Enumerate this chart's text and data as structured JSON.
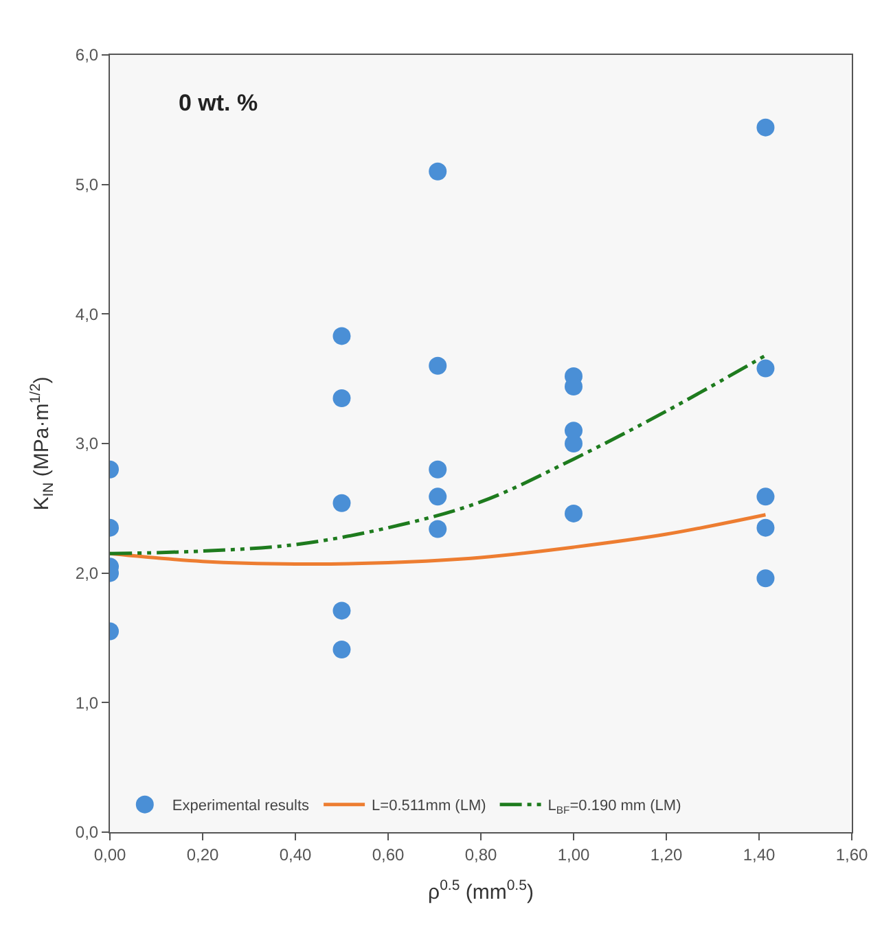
{
  "chart_data": {
    "type": "scatter",
    "title": "0 wt. %",
    "xlabel": "ρ$^{0.5}$ (mm$^{0.5}$)",
    "ylabel": "K$_{IN}$ (MPa·m$^{1/2}$)",
    "xlim": [
      0,
      1.6
    ],
    "ylim": [
      0,
      6
    ],
    "xticks": [
      {
        "value": 0,
        "label": "0,00"
      },
      {
        "value": 0.2,
        "label": "0,20"
      },
      {
        "value": 0.4,
        "label": "0,40"
      },
      {
        "value": 0.6,
        "label": "0,60"
      },
      {
        "value": 0.8,
        "label": "0,80"
      },
      {
        "value": 1.0,
        "label": "1,00"
      },
      {
        "value": 1.2,
        "label": "1,20"
      },
      {
        "value": 1.4,
        "label": "1,40"
      },
      {
        "value": 1.6,
        "label": "1,60"
      }
    ],
    "yticks": [
      {
        "value": 0,
        "label": "0,0"
      },
      {
        "value": 1,
        "label": "1,0"
      },
      {
        "value": 2,
        "label": "2,0"
      },
      {
        "value": 3,
        "label": "3,0"
      },
      {
        "value": 4,
        "label": "4,0"
      },
      {
        "value": 5,
        "label": "5,0"
      },
      {
        "value": 6,
        "label": "6,0"
      }
    ],
    "grid": false,
    "legend": "bottom",
    "series": [
      {
        "name": "Experimental results",
        "marker": "circle",
        "color": "#4a8fd6",
        "x": [
          0,
          0,
          0,
          0,
          0,
          0.5,
          0.5,
          0.5,
          0.5,
          0.5,
          0.707,
          0.707,
          0.707,
          0.707,
          0.707,
          1.0,
          1.0,
          1.0,
          1.0,
          1.0,
          1.414,
          1.414,
          1.414,
          1.414,
          1.414
        ],
        "values": [
          2.8,
          2.35,
          2.05,
          2.0,
          1.55,
          3.83,
          3.35,
          2.54,
          1.71,
          1.41,
          5.1,
          3.6,
          2.8,
          2.59,
          2.34,
          3.52,
          3.44,
          3.1,
          3.0,
          2.46,
          5.44,
          3.58,
          2.59,
          2.35,
          1.96
        ]
      },
      {
        "name": "L=0.511mm (LM)",
        "type": "line",
        "line_style": "solid",
        "color": "#ed7d31",
        "x": [
          0,
          0.2,
          0.4,
          0.6,
          0.8,
          1.0,
          1.2,
          1.414
        ],
        "values": [
          2.15,
          2.09,
          2.07,
          2.08,
          2.12,
          2.2,
          2.3,
          2.45
        ]
      },
      {
        "name": "L$_{BF}$=0.190 mm (LM)",
        "type": "line",
        "line_style": "dashed",
        "color": "#1e7b1e",
        "x": [
          0,
          0.2,
          0.4,
          0.6,
          0.8,
          1.0,
          1.2,
          1.414
        ],
        "values": [
          2.15,
          2.17,
          2.22,
          2.35,
          2.55,
          2.88,
          3.25,
          3.68
        ]
      }
    ]
  }
}
